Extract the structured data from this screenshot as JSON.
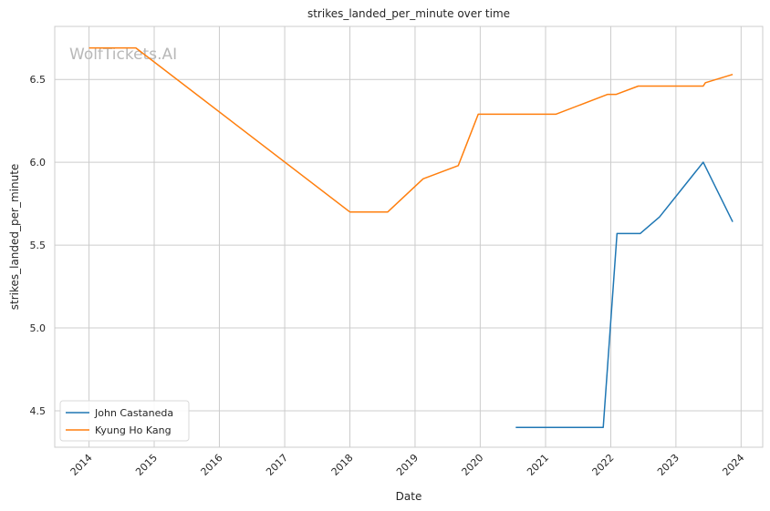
{
  "chart_data": {
    "type": "line",
    "title": "strikes_landed_per_minute over time",
    "xlabel": "Date",
    "ylabel": "strikes_landed_per_minute",
    "watermark": "WolfTickets.AI",
    "xlim": [
      "2013-06-23",
      "2024-05-01"
    ],
    "ylim": [
      4.28,
      6.82
    ],
    "x_ticks": [
      "2014",
      "2015",
      "2016",
      "2017",
      "2018",
      "2019",
      "2020",
      "2021",
      "2022",
      "2023",
      "2024"
    ],
    "y_ticks": [
      "4.5",
      "5.0",
      "5.5",
      "6.0",
      "6.5"
    ],
    "y_tick_values": [
      4.5,
      5.0,
      5.5,
      6.0,
      6.5
    ],
    "grid": true,
    "legend_position": "lower-left",
    "series": [
      {
        "name": "John Castaneda",
        "color": "#1f77b4",
        "points": [
          [
            "2020-07-18",
            4.4
          ],
          [
            "2021-11-20",
            4.4
          ],
          [
            "2022-02-05",
            5.57
          ],
          [
            "2022-06-15",
            5.57
          ],
          [
            "2022-10-01",
            5.67
          ],
          [
            "2023-06-03",
            6.0
          ],
          [
            "2023-11-15",
            5.64
          ]
        ]
      },
      {
        "name": "Kyung Ho Kang",
        "color": "#ff7f0e",
        "points": [
          [
            "2014-01-01",
            6.69
          ],
          [
            "2014-09-20",
            6.69
          ],
          [
            "2018-01-01",
            5.7
          ],
          [
            "2018-08-01",
            5.7
          ],
          [
            "2019-02-15",
            5.9
          ],
          [
            "2019-08-31",
            5.98
          ],
          [
            "2019-12-21",
            6.29
          ],
          [
            "2021-02-27",
            6.29
          ],
          [
            "2021-12-15",
            6.41
          ],
          [
            "2022-02-01",
            6.41
          ],
          [
            "2022-06-04",
            6.46
          ],
          [
            "2023-06-03",
            6.46
          ],
          [
            "2023-06-15",
            6.48
          ],
          [
            "2023-11-15",
            6.53
          ]
        ]
      }
    ]
  }
}
